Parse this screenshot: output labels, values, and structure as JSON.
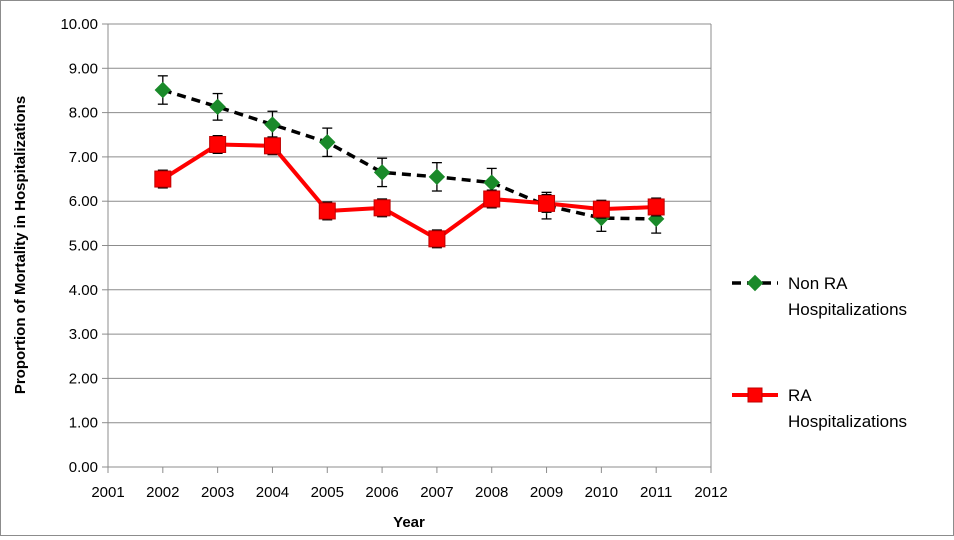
{
  "chart_data": {
    "type": "line",
    "title": "",
    "xlabel": "Year",
    "ylabel": "Proportion of Mortality in Hospitalizations",
    "xlim": [
      2001,
      2012
    ],
    "ylim": [
      0,
      10
    ],
    "x_ticks": [
      "2001",
      "2002",
      "2003",
      "2004",
      "2005",
      "2006",
      "2007",
      "2008",
      "2009",
      "2010",
      "2011",
      "2012"
    ],
    "y_ticks": [
      "0.00",
      "1.00",
      "2.00",
      "3.00",
      "4.00",
      "5.00",
      "6.00",
      "7.00",
      "8.00",
      "9.00",
      "10.00"
    ],
    "grid": "horizontal",
    "legend_position": "right",
    "series": [
      {
        "name": "Non RA Hospitalizations",
        "legend_lines": [
          "Non RA",
          "Hospitalizations"
        ],
        "color": "#000000",
        "marker_color": "#1a8a2a",
        "line_style": "dashed",
        "marker": "diamond",
        "x": [
          2002,
          2003,
          2004,
          2005,
          2006,
          2007,
          2008,
          2009,
          2010,
          2011
        ],
        "y": [
          8.51,
          8.13,
          7.73,
          7.33,
          6.65,
          6.55,
          6.42,
          5.9,
          5.62,
          5.6
        ],
        "error": [
          0.32,
          0.3,
          0.3,
          0.32,
          0.32,
          0.32,
          0.32,
          0.3,
          0.3,
          0.32
        ]
      },
      {
        "name": "RA Hospitalizations",
        "legend_lines": [
          "RA",
          "Hospitalizations"
        ],
        "color": "#ff0000",
        "marker_color": "#ff0000",
        "line_style": "solid",
        "marker": "square",
        "x": [
          2002,
          2003,
          2004,
          2005,
          2006,
          2007,
          2008,
          2009,
          2010,
          2011
        ],
        "y": [
          6.5,
          7.28,
          7.25,
          5.78,
          5.85,
          5.15,
          6.05,
          5.95,
          5.82,
          5.87
        ],
        "error": [
          0.2,
          0.2,
          0.2,
          0.2,
          0.2,
          0.2,
          0.2,
          0.2,
          0.2,
          0.2
        ]
      }
    ]
  }
}
